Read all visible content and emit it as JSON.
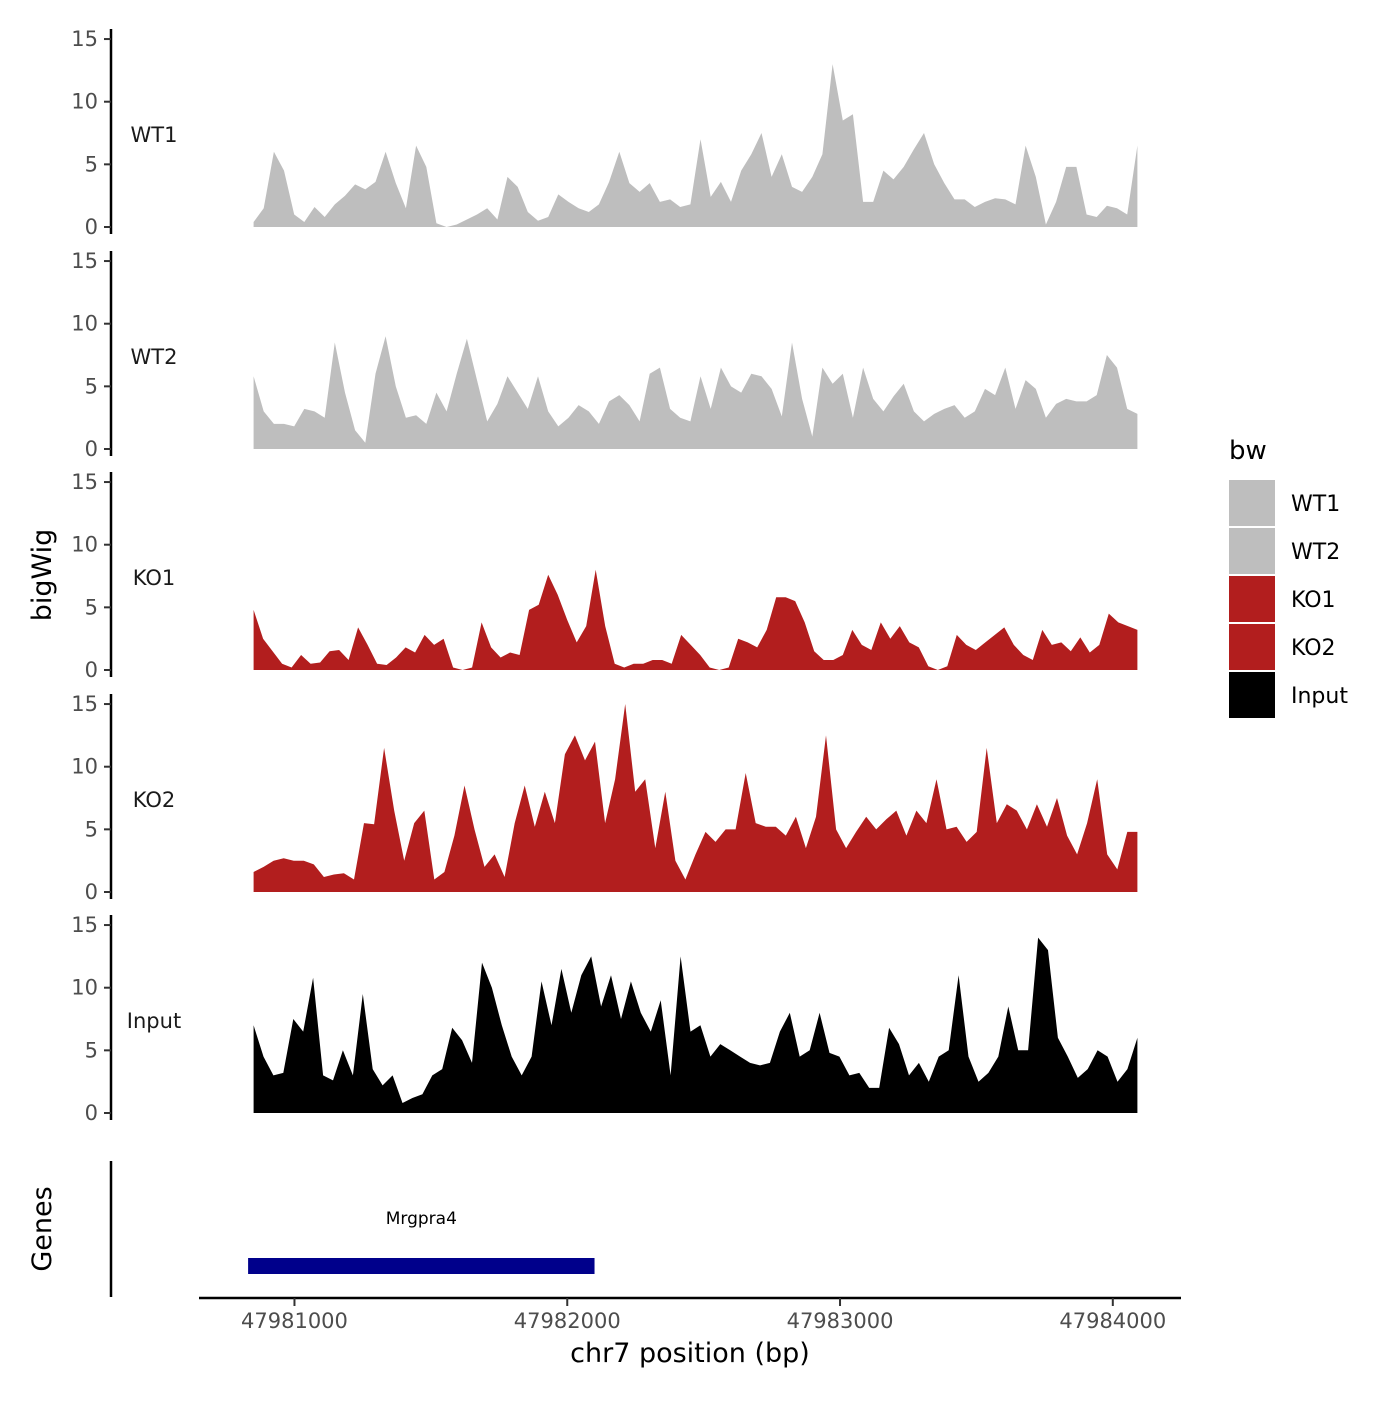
{
  "chart_data": {
    "type": "area",
    "title": "",
    "xlabel": "chr7 position (bp)",
    "ylabel": "bigWig",
    "genes_label": "Genes",
    "xlim": [
      47980650,
      47984250
    ],
    "x_ticks": [
      "47981000",
      "47982000",
      "47983000",
      "47984000"
    ],
    "ylim": [
      0,
      15
    ],
    "y_ticks": [
      "0",
      "5",
      "10",
      "15"
    ],
    "data_range": [
      47980850,
      47984090
    ],
    "legend": {
      "title": "bw",
      "entries": [
        {
          "label": "WT1",
          "color": "#bebebe"
        },
        {
          "label": "WT2",
          "color": "#bebebe"
        },
        {
          "label": "KO1",
          "color": "#b21e1e"
        },
        {
          "label": "KO2",
          "color": "#b21e1e"
        },
        {
          "label": "Input",
          "color": "#000000"
        }
      ]
    },
    "series": [
      {
        "name": "WT1",
        "color": "#bebebe",
        "values": [
          0.4,
          1.5,
          6.0,
          4.5,
          1.0,
          0.4,
          1.6,
          0.8,
          1.8,
          2.5,
          3.4,
          3.0,
          3.6,
          6.0,
          3.5,
          1.5,
          6.5,
          4.8,
          0.3,
          0.0,
          0.2,
          0.6,
          1.0,
          1.5,
          0.6,
          4.0,
          3.2,
          1.2,
          0.5,
          0.8,
          2.6,
          2.0,
          1.5,
          1.2,
          1.8,
          3.6,
          6.0,
          3.5,
          2.8,
          3.5,
          2.0,
          2.2,
          1.6,
          1.8,
          7.0,
          2.4,
          3.6,
          2.0,
          4.5,
          5.8,
          7.5,
          4.0,
          5.8,
          3.2,
          2.8,
          4.0,
          5.8,
          13.0,
          8.5,
          9.0,
          2.0,
          2.0,
          4.5,
          3.8,
          4.8,
          6.2,
          7.5,
          5.0,
          3.5,
          2.2,
          2.2,
          1.6,
          2.0,
          2.3,
          2.2,
          1.8,
          6.5,
          4.0,
          0.2,
          2.0,
          4.8,
          4.8,
          1.0,
          0.8,
          1.7,
          1.5,
          1.0,
          6.5
        ]
      },
      {
        "name": "WT2",
        "color": "#bebebe",
        "values": [
          5.8,
          3.0,
          2.0,
          2.0,
          1.8,
          3.2,
          3.0,
          2.5,
          8.5,
          4.5,
          1.5,
          0.5,
          6.0,
          9.0,
          5.0,
          2.5,
          2.7,
          2.0,
          4.5,
          3.0,
          6.0,
          8.8,
          5.5,
          2.2,
          3.6,
          5.8,
          4.5,
          3.2,
          5.8,
          3.0,
          1.8,
          2.5,
          3.5,
          3.0,
          2.0,
          3.8,
          4.3,
          3.5,
          2.2,
          6.0,
          6.5,
          3.2,
          2.5,
          2.2,
          5.8,
          3.2,
          6.5,
          5.0,
          4.5,
          6.0,
          5.8,
          4.8,
          2.6,
          8.5,
          4.0,
          1.0,
          6.5,
          5.2,
          6.0,
          2.5,
          6.5,
          4.0,
          3.0,
          4.2,
          5.2,
          3.0,
          2.2,
          2.8,
          3.2,
          3.5,
          2.5,
          3.0,
          4.8,
          4.3,
          6.5,
          3.2,
          5.5,
          4.8,
          2.5,
          3.6,
          4.0,
          3.8,
          3.8,
          4.3,
          7.5,
          6.5,
          3.2,
          2.8
        ]
      },
      {
        "name": "KO1",
        "color": "#b21e1e",
        "values": [
          4.8,
          2.5,
          1.5,
          0.5,
          0.2,
          1.2,
          0.5,
          0.6,
          1.5,
          1.6,
          0.8,
          3.4,
          2.0,
          0.5,
          0.4,
          1.0,
          1.8,
          1.4,
          2.8,
          2.0,
          2.5,
          0.2,
          0.0,
          0.2,
          3.8,
          1.8,
          1.0,
          1.4,
          1.2,
          4.8,
          5.2,
          7.6,
          6.0,
          4.0,
          2.2,
          3.5,
          8.0,
          3.5,
          0.5,
          0.2,
          0.5,
          0.5,
          0.8,
          0.8,
          0.5,
          2.8,
          2.0,
          1.2,
          0.2,
          0.0,
          0.2,
          2.5,
          2.2,
          1.8,
          3.2,
          5.8,
          5.8,
          5.5,
          3.8,
          1.5,
          0.8,
          0.8,
          1.2,
          3.2,
          2.0,
          1.6,
          3.8,
          2.5,
          3.5,
          2.2,
          1.8,
          0.3,
          0.0,
          0.3,
          2.8,
          2.0,
          1.6,
          2.2,
          2.8,
          3.4,
          2.0,
          1.2,
          0.8,
          3.2,
          2.0,
          2.2,
          1.5,
          2.6,
          1.4,
          2.0,
          4.5,
          3.8,
          3.5,
          3.2
        ]
      },
      {
        "name": "KO2",
        "color": "#b21e1e",
        "values": [
          1.6,
          2.0,
          2.5,
          2.7,
          2.5,
          2.5,
          2.2,
          1.2,
          1.4,
          1.5,
          1.0,
          5.5,
          5.4,
          11.5,
          6.5,
          2.5,
          5.5,
          6.5,
          1.0,
          1.6,
          4.5,
          8.5,
          5.0,
          2.0,
          3.0,
          1.2,
          5.5,
          8.5,
          5.2,
          8.0,
          5.5,
          11.0,
          12.5,
          10.5,
          12.0,
          5.5,
          9.0,
          15.0,
          8.0,
          9.0,
          3.5,
          8.0,
          2.5,
          1.0,
          3.0,
          4.8,
          4.0,
          5.0,
          5.0,
          9.5,
          5.5,
          5.2,
          5.2,
          4.5,
          6.0,
          3.5,
          6.0,
          12.5,
          5.0,
          3.5,
          4.8,
          6.0,
          5.0,
          5.8,
          6.5,
          4.5,
          6.5,
          5.5,
          9.0,
          5.0,
          5.2,
          4.0,
          4.8,
          11.5,
          5.5,
          7.0,
          6.5,
          5.0,
          7.0,
          5.2,
          7.5,
          4.5,
          3.0,
          5.5,
          9.0,
          3.0,
          1.8,
          4.8,
          4.8
        ]
      },
      {
        "name": "Input",
        "color": "#000000",
        "values": [
          7.0,
          4.5,
          3.0,
          3.2,
          7.5,
          6.5,
          10.8,
          3.0,
          2.6,
          5.0,
          3.0,
          9.5,
          3.5,
          2.2,
          3.0,
          0.8,
          1.2,
          1.5,
          3.0,
          3.5,
          6.8,
          5.8,
          4.0,
          12.0,
          10.0,
          7.0,
          4.5,
          3.0,
          4.5,
          10.5,
          7.0,
          11.5,
          8.0,
          11.0,
          12.5,
          8.5,
          11.0,
          7.5,
          10.5,
          8.0,
          6.5,
          9.0,
          3.0,
          12.5,
          6.5,
          7.0,
          4.5,
          5.5,
          5.0,
          4.5,
          4.0,
          3.8,
          4.0,
          6.5,
          8.0,
          4.5,
          5.0,
          8.0,
          4.8,
          4.5,
          3.0,
          3.2,
          2.0,
          2.0,
          6.8,
          5.5,
          3.0,
          4.0,
          2.5,
          4.5,
          5.0,
          11.0,
          4.5,
          2.5,
          3.2,
          4.5,
          8.5,
          5.0,
          5.0,
          14.0,
          13.0,
          6.0,
          4.5,
          2.8,
          3.5,
          5.0,
          4.5,
          2.5,
          3.5,
          6.0
        ]
      }
    ],
    "genes": [
      {
        "name": "Mrgpra4",
        "start": 47980830,
        "end": 47982100,
        "color": "#00008b"
      }
    ]
  }
}
